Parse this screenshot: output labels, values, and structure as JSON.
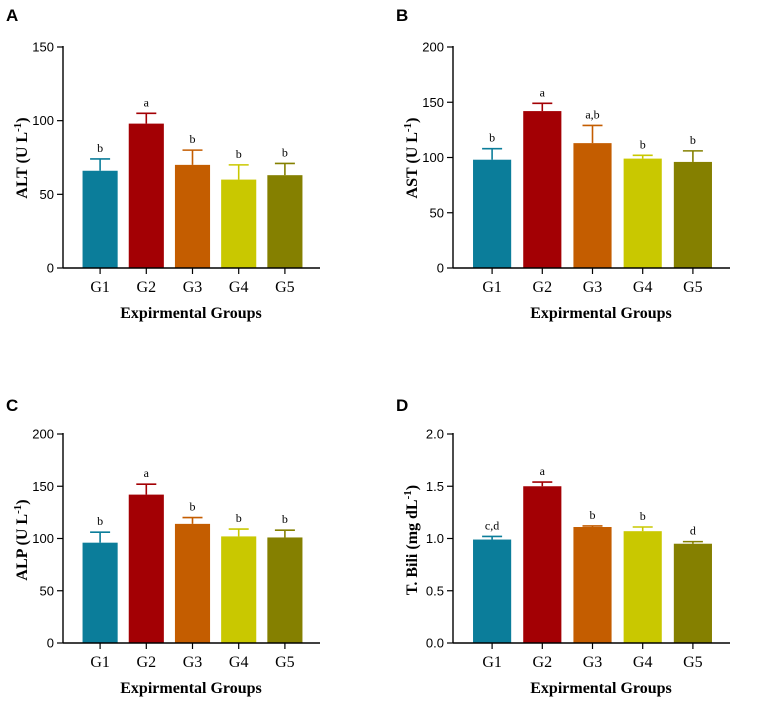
{
  "chart_data": [
    {
      "panel": "A",
      "type": "bar",
      "categories": [
        "G1",
        "G2",
        "G3",
        "G4",
        "G5"
      ],
      "values": [
        66,
        98,
        70,
        60,
        63
      ],
      "errors": [
        8,
        7,
        10,
        10,
        8
      ],
      "significance": [
        "b",
        "a",
        "b",
        "b",
        "b"
      ],
      "colors": [
        "#0b7d9a",
        "#a30004",
        "#c45d00",
        "#c9c800",
        "#858000"
      ],
      "ylabel_text": "ALT (U L",
      "ylabel_sup": "-1",
      "ylabel_close": ")",
      "xlabel": "Expirmental Groups",
      "ylim": [
        0,
        150
      ],
      "yticks": [
        0,
        50,
        100,
        150
      ],
      "ytick_labels": [
        "0",
        "50",
        "100",
        "150"
      ]
    },
    {
      "panel": "B",
      "type": "bar",
      "categories": [
        "G1",
        "G2",
        "G3",
        "G4",
        "G5"
      ],
      "values": [
        98,
        142,
        113,
        99,
        96
      ],
      "errors": [
        10,
        7,
        16,
        3,
        10
      ],
      "significance": [
        "b",
        "a",
        "a,b",
        "b",
        "b"
      ],
      "colors": [
        "#0b7d9a",
        "#a30004",
        "#c45d00",
        "#c9c800",
        "#858000"
      ],
      "ylabel_text": "AST (U L",
      "ylabel_sup": "-1",
      "ylabel_close": ")",
      "xlabel": "Expirmental Groups",
      "ylim": [
        0,
        200
      ],
      "yticks": [
        0,
        50,
        100,
        150,
        200
      ],
      "ytick_labels": [
        "0",
        "50",
        "100",
        "150",
        "200"
      ]
    },
    {
      "panel": "C",
      "type": "bar",
      "categories": [
        "G1",
        "G2",
        "G3",
        "G4",
        "G5"
      ],
      "values": [
        96,
        142,
        114,
        102,
        101
      ],
      "errors": [
        10,
        10,
        6,
        7,
        7
      ],
      "significance": [
        "b",
        "a",
        "b",
        "b",
        "b"
      ],
      "colors": [
        "#0b7d9a",
        "#a30004",
        "#c45d00",
        "#c9c800",
        "#858000"
      ],
      "ylabel_text": "ALP (U L",
      "ylabel_sup": "-1",
      "ylabel_close": ")",
      "xlabel": "Expirmental Groups",
      "ylim": [
        0,
        200
      ],
      "yticks": [
        0,
        50,
        100,
        150,
        200
      ],
      "ytick_labels": [
        "0",
        "50",
        "100",
        "150",
        "200"
      ]
    },
    {
      "panel": "D",
      "type": "bar",
      "categories": [
        "G1",
        "G2",
        "G3",
        "G4",
        "G5"
      ],
      "values": [
        0.99,
        1.5,
        1.11,
        1.07,
        0.95
      ],
      "errors": [
        0.03,
        0.04,
        0.01,
        0.04,
        0.02
      ],
      "significance": [
        "c,d",
        "a",
        "b",
        "b",
        "d"
      ],
      "colors": [
        "#0b7d9a",
        "#a30004",
        "#c45d00",
        "#c9c800",
        "#858000"
      ],
      "ylabel_text": "T. Bili (mg dL",
      "ylabel_sup": "-1",
      "ylabel_close": ")",
      "xlabel": "Expirmental Groups",
      "ylim": [
        0,
        2.0
      ],
      "yticks": [
        0,
        0.5,
        1.0,
        1.5,
        2.0
      ],
      "ytick_labels": [
        "0.0",
        "0.5",
        "1.0",
        "1.5",
        "2.0"
      ]
    }
  ]
}
